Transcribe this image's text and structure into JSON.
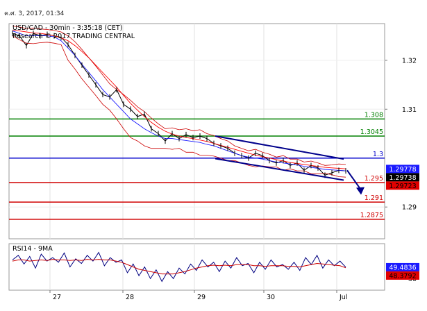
{
  "header": {
    "datetime": "ค.ศ. 3, 2017, 01:34"
  },
  "chart_data": [
    {
      "type": "line",
      "title": "USD/CAD - 30min - 3:35:18 (CET)",
      "subtitle": "Research © 2017 TRADING CENTRAL",
      "ylim": [
        1.2835,
        1.3275
      ],
      "yticks": [
        "1.32",
        "1.31",
        "1.29"
      ],
      "xticks": [
        "27",
        "28",
        "29",
        "30",
        "Jul"
      ],
      "levels": [
        {
          "label": "1.308",
          "value": 1.308,
          "color": "#008000"
        },
        {
          "label": "1.3045",
          "value": 1.3045,
          "color": "#008000"
        },
        {
          "label": "1.3",
          "value": 1.3,
          "color": "#0000cc"
        },
        {
          "label": "1.295",
          "value": 1.295,
          "color": "#d00000"
        },
        {
          "label": "1.291",
          "value": 1.291,
          "color": "#d00000"
        },
        {
          "label": "1.2875",
          "value": 1.2875,
          "color": "#d00000"
        }
      ],
      "price_tags": [
        {
          "label": "1.29778",
          "value": 1.29778,
          "bg": "#1a1aff",
          "fg": "#ffffff"
        },
        {
          "label": "1.29738",
          "value": 1.29738,
          "bg": "#000000",
          "fg": "#ffffff"
        },
        {
          "label": "1.29723",
          "value": 1.29723,
          "bg": "#e00000",
          "fg": "#000000"
        }
      ],
      "series": [
        {
          "values": [
            1.3255,
            1.325,
            1.323,
            1.3255,
            1.325,
            1.3253,
            1.325,
            1.3247,
            1.3232,
            1.321,
            1.319,
            1.317,
            1.315,
            1.313,
            1.3125,
            1.314,
            1.311,
            1.31,
            1.3085,
            1.309,
            1.306,
            1.305,
            1.3035,
            1.305,
            1.304,
            1.3048,
            1.3042,
            1.3045,
            1.304,
            1.303,
            1.3025,
            1.302,
            1.301,
            1.3005,
            1.3,
            1.301,
            1.3005,
            1.2995,
            1.299,
            1.2995,
            1.2985,
            1.299,
            1.2975,
            1.2985,
            1.298,
            1.2965,
            1.297,
            1.2975,
            1.2974
          ]
        },
        {
          "values": [
            1.326,
            1.3255,
            1.325,
            1.325,
            1.325,
            1.325,
            1.3248,
            1.324,
            1.3225,
            1.321,
            1.3192,
            1.3175,
            1.3158,
            1.314,
            1.3125,
            1.311,
            1.3095,
            1.308,
            1.307,
            1.306,
            1.3052,
            1.3045,
            1.304,
            1.304,
            1.3038,
            1.3036,
            1.3034,
            1.3032,
            1.3028,
            1.3025,
            1.302,
            1.3015,
            1.301,
            1.3005,
            1.3002,
            1.3,
            1.2998,
            1.2995,
            1.2992,
            1.299,
            1.2988,
            1.2986,
            1.2983,
            1.2981,
            1.2979,
            1.2977,
            1.2976,
            1.2975,
            1.2974
          ]
        },
        {
          "values": [
            1.3262,
            1.326,
            1.3258,
            1.3256,
            1.3255,
            1.3253,
            1.325,
            1.3246,
            1.324,
            1.323,
            1.3218,
            1.3205,
            1.319,
            1.3175,
            1.316,
            1.3145,
            1.3128,
            1.3112,
            1.3098,
            1.3085,
            1.3073,
            1.3063,
            1.3055,
            1.3049,
            1.3045,
            1.3042,
            1.304,
            1.3037,
            1.3034,
            1.303,
            1.3026,
            1.3022,
            1.3018,
            1.3014,
            1.301,
            1.3006,
            1.3003,
            1.3,
            1.2997,
            1.2994,
            1.2991,
            1.2989,
            1.2987,
            1.2985,
            1.2983,
            1.2981,
            1.298,
            1.2979,
            1.2978
          ]
        },
        {
          "values": [
            1.327,
            1.3268,
            1.3265,
            1.3266,
            1.3264,
            1.3263,
            1.3261,
            1.3258,
            1.325,
            1.3238,
            1.3222,
            1.3205,
            1.3188,
            1.317,
            1.3152,
            1.314,
            1.313,
            1.3118,
            1.3105,
            1.3095,
            1.3082,
            1.307,
            1.306,
            1.3062,
            1.3058,
            1.306,
            1.3056,
            1.3058,
            1.305,
            1.3046,
            1.304,
            1.3035,
            1.3025,
            1.302,
            1.3015,
            1.3018,
            1.3012,
            1.3008,
            1.3002,
            1.3005,
            1.2998,
            1.2998,
            1.2992,
            1.2994,
            1.299,
            1.2985,
            1.2986,
            1.2988,
            1.2987
          ]
        },
        {
          "values": [
            1.325,
            1.3242,
            1.3235,
            1.3234,
            1.3236,
            1.3237,
            1.3235,
            1.3232,
            1.32,
            1.3182,
            1.3162,
            1.3145,
            1.3128,
            1.311,
            1.3098,
            1.308,
            1.306,
            1.3042,
            1.3035,
            1.3025,
            1.302,
            1.302,
            1.302,
            1.3018,
            1.302,
            1.3012,
            1.3012,
            1.3006,
            1.3006,
            1.3004,
            1.3,
            1.2995,
            1.2995,
            1.299,
            1.2985,
            1.2982,
            1.2984,
            1.2982,
            1.2982,
            1.2975,
            1.2978,
            1.2974,
            1.2974,
            1.2968,
            1.2968,
            1.2969,
            1.2966,
            1.2962,
            1.2961
          ]
        }
      ],
      "channel": {
        "upper": [
          [
            1.3045,
            1.2998
          ],
          [
            1.3062,
            1.2985
          ]
        ],
        "lower": [
          [
            1.2999,
            1.2955
          ],
          [
            1.3,
            1.2968
          ]
        ]
      },
      "forecast_arrow": {
        "from": 1.2975,
        "to": 1.2935
      }
    },
    {
      "type": "line",
      "title": "RSI14 - 9MA",
      "yticks": [
        "30"
      ],
      "ylim": [
        10,
        90
      ],
      "price_tags": [
        {
          "label": "49.4836",
          "value": 49.4836,
          "bg": "#1a1aff",
          "fg": "#ffffff"
        },
        {
          "label": "48.3792",
          "value": 48.3792,
          "bg": "#e00000",
          "fg": "#000000"
        }
      ],
      "series": [
        {
          "values": [
            62,
            70,
            55,
            68,
            48,
            72,
            60,
            66,
            58,
            74,
            50,
            64,
            56,
            70,
            60,
            75,
            52,
            66,
            58,
            62,
            40,
            55,
            35,
            50,
            30,
            45,
            25,
            42,
            30,
            48,
            38,
            55,
            44,
            62,
            50,
            58,
            42,
            60,
            48,
            66,
            52,
            56,
            40,
            58,
            46,
            62,
            50,
            54,
            46,
            58,
            44,
            66,
            54,
            70,
            48,
            62,
            52,
            60,
            49.5
          ]
        },
        {
          "values": [
            60,
            62,
            62,
            60,
            61,
            62,
            61,
            63,
            62,
            62,
            61,
            62,
            61,
            63,
            62,
            63,
            62,
            62,
            60,
            58,
            54,
            50,
            46,
            44,
            42,
            40,
            38,
            38,
            38,
            40,
            42,
            45,
            48,
            50,
            52,
            53,
            52,
            53,
            52,
            54,
            54,
            54,
            52,
            52,
            51,
            52,
            52,
            52,
            51,
            51,
            50,
            52,
            54,
            56,
            55,
            54,
            53,
            52,
            48.4
          ]
        }
      ]
    }
  ]
}
